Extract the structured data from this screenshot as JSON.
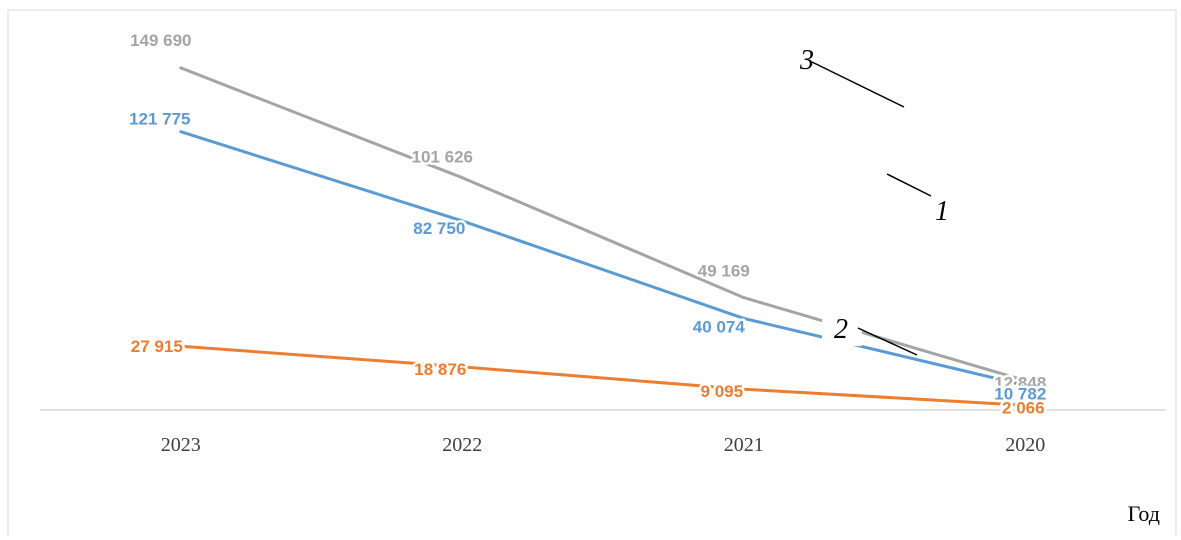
{
  "chart_data": {
    "type": "line",
    "categories": [
      "2023",
      "2022",
      "2021",
      "2020"
    ],
    "xlabel": "Год",
    "ylabel": "",
    "grid": false,
    "ylim": [
      0,
      175000
    ],
    "series": [
      {
        "id": "1",
        "values": [
          121775,
          82750,
          40074,
          10782
        ],
        "labels": [
          "121 775",
          "82 750",
          "40 074",
          "10 782"
        ],
        "color": "#5b9bd5"
      },
      {
        "id": "2",
        "values": [
          27915,
          18876,
          9095,
          2066
        ],
        "labels": [
          "27 915",
          "18 876",
          "9 095",
          "2 066"
        ],
        "color": "#ed7d31"
      },
      {
        "id": "3",
        "values": [
          149690,
          101626,
          49169,
          12848
        ],
        "labels": [
          "149 690",
          "101 626",
          "49 169",
          "12 848"
        ],
        "color": "#a5a5a5"
      }
    ],
    "annotations": [
      {
        "text": "3",
        "target_series": "3"
      },
      {
        "text": "1",
        "target_series": "1"
      },
      {
        "text": "2",
        "target_series": "2"
      }
    ]
  },
  "colors": {
    "axis": "#d9d9d9",
    "frame": "#d9d9d9",
    "annotation": "#000000"
  }
}
